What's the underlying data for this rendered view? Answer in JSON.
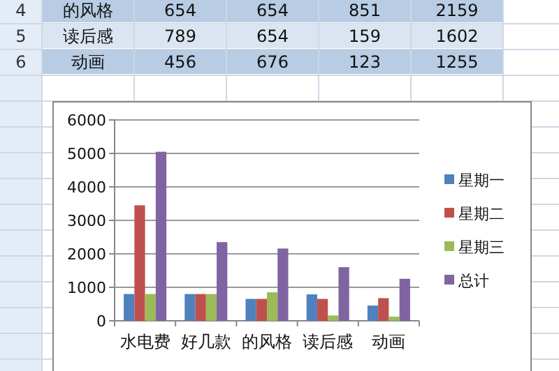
{
  "chart_data": [
    {
      "type": "other",
      "annotations": [
        "4",
        "的风格",
        "654",
        "654",
        "851",
        "2159",
        "5",
        "读后感",
        "789",
        "654",
        "159",
        "1602",
        "6",
        "动画",
        "456",
        "676",
        "123",
        "1255"
      ]
    },
    {
      "type": "bar",
      "categories": [
        "水电费",
        "好几款",
        "的风格",
        "读后感",
        "动画"
      ],
      "series": [
        {
          "name": "星期一",
          "color": "#4f81bd",
          "values": [
            800,
            800,
            654,
            789,
            456
          ]
        },
        {
          "name": "星期二",
          "color": "#c0504d",
          "values": [
            3450,
            800,
            654,
            654,
            676
          ]
        },
        {
          "name": "星期三",
          "color": "#9bbb59",
          "values": [
            800,
            800,
            851,
            159,
            123
          ]
        },
        {
          "name": "总计",
          "color": "#8064a2",
          "values": [
            5050,
            2350,
            2159,
            1602,
            1255
          ]
        }
      ],
      "ylim": [
        0,
        6000
      ],
      "yticks": [
        0,
        1000,
        2000,
        3000,
        4000,
        5000,
        6000
      ],
      "grid": "y",
      "legend": "right"
    }
  ]
}
